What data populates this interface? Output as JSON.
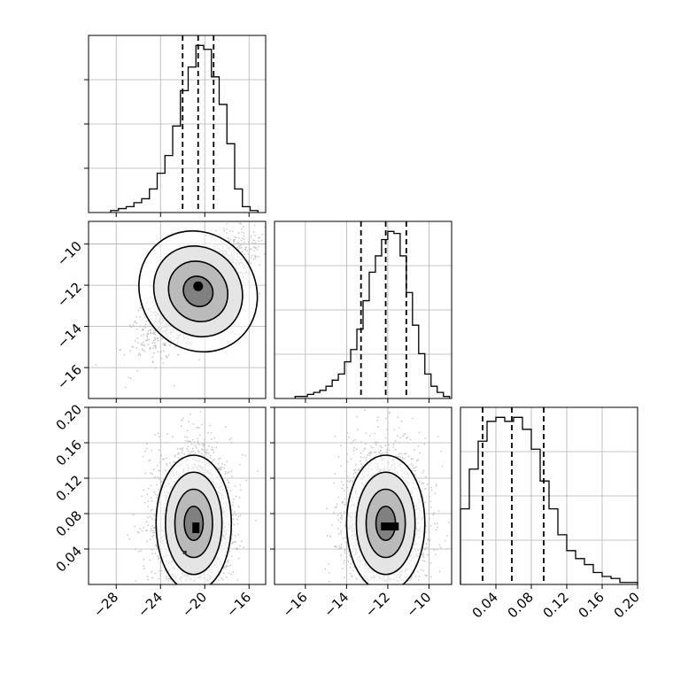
{
  "chart_data": {
    "type": "corner",
    "title": "",
    "parameters": [
      {
        "xlim": [
          -30.5,
          -14.5
        ],
        "ylim": [
          -17.5,
          -8.9
        ],
        "ticks": [
          -28,
          -24,
          -20,
          -16
        ],
        "tick_labels": [
          "−28",
          "−24",
          "−20",
          "−16"
        ],
        "quantiles": [
          -22.0,
          -20.6,
          -19.2
        ]
      },
      {
        "xlim": [
          -17.5,
          -8.9
        ],
        "ticks": [
          -16,
          -14,
          -12,
          -10
        ],
        "tick_labels": [
          "−16",
          "−14",
          "−12",
          "−10"
        ],
        "quantiles": [
          -13.3,
          -12.1,
          -11.1
        ]
      },
      {
        "xlim": [
          0.0,
          0.2
        ],
        "ylim": [
          0.0,
          0.2
        ],
        "ticks": [
          0.04,
          0.08,
          0.12,
          0.16,
          0.2
        ],
        "tick_labels": [
          "0.04",
          "0.08",
          "0.12",
          "0.16",
          "0.20"
        ],
        "quantiles": [
          0.025,
          0.058,
          0.094
        ]
      }
    ],
    "histograms": [
      {
        "parameter": 0,
        "edges": [
          -28.5,
          -27.8,
          -27.1,
          -26.4,
          -25.7,
          -25.0,
          -24.3,
          -23.6,
          -22.9,
          -22.2,
          -21.5,
          -20.8,
          -20.1,
          -19.4,
          -18.7,
          -18.0,
          -17.3,
          -16.6,
          -15.9,
          -15.2
        ],
        "counts": [
          1,
          2,
          3,
          5,
          7,
          12,
          20,
          29,
          44,
          62,
          74,
          85,
          83,
          69,
          55,
          35,
          12,
          3,
          1
        ]
      },
      {
        "parameter": 1,
        "edges": [
          -16.5,
          -16.2,
          -15.9,
          -15.6,
          -15.3,
          -15.0,
          -14.7,
          -14.4,
          -14.1,
          -13.8,
          -13.5,
          -13.2,
          -12.9,
          -12.6,
          -12.3,
          -12.0,
          -11.7,
          -11.4,
          -11.1,
          -10.8,
          -10.5,
          -10.2,
          -9.9,
          -9.6,
          -9.3,
          -9.0
        ],
        "counts": [
          1,
          1,
          2,
          3,
          4,
          6,
          9,
          12,
          18,
          24,
          34,
          48,
          62,
          70,
          78,
          82,
          81,
          70,
          52,
          36,
          22,
          12,
          6,
          3,
          1
        ]
      },
      {
        "parameter": 2,
        "edges": [
          0.0,
          0.01,
          0.02,
          0.03,
          0.04,
          0.05,
          0.06,
          0.07,
          0.08,
          0.09,
          0.1,
          0.11,
          0.12,
          0.13,
          0.14,
          0.15,
          0.16,
          0.17,
          0.18,
          0.19,
          0.2
        ],
        "counts": [
          38,
          58,
          72,
          82,
          84,
          82,
          84,
          78,
          68,
          52,
          38,
          25,
          17,
          13,
          10,
          6,
          4,
          3,
          1,
          1
        ]
      }
    ],
    "pair_plots": [
      {
        "x_param": 0,
        "y_param": 1,
        "mode_x": -20.6,
        "mode_y": -12.05,
        "center_x": -20.6,
        "center_y": -12.3,
        "slope": 0.43,
        "sigma_major": 2.45,
        "sigma_minor": 0.8,
        "levels": [
          0.5,
          1.0,
          1.5,
          2.0
        ]
      },
      {
        "x_param": 0,
        "y_param": 2,
        "mode_x": -20.8,
        "mode_y": 0.064,
        "center_x": -21.0,
        "center_y": 0.065,
        "slope": 0.0,
        "sigma_x": 1.7,
        "sigma_y": 0.035,
        "levels": [
          0.5,
          1.0,
          1.5,
          2.0
        ]
      },
      {
        "x_param": 1,
        "y_param": 2,
        "mode_x": -11.9,
        "mode_y": 0.066,
        "center_x": -12.1,
        "center_y": 0.065,
        "slope": 0.0,
        "sigma_x": 0.95,
        "sigma_y": 0.035,
        "levels": [
          0.5,
          1.0,
          1.5,
          2.0
        ]
      }
    ],
    "grid": true,
    "contour_color": "#000000",
    "scatter_color": "#bdbdbd",
    "grid_color": "#b0b0b0"
  }
}
